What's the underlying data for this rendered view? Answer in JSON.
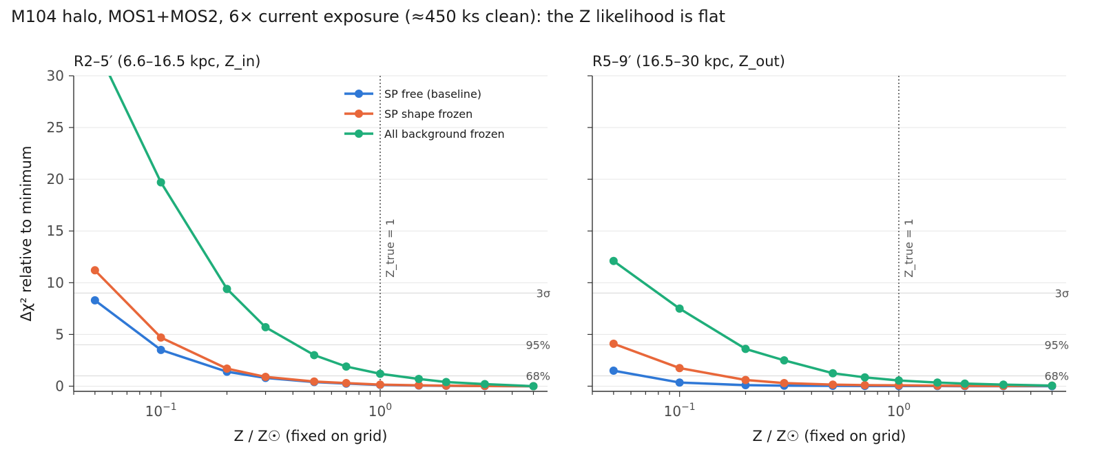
{
  "figure": {
    "title": "M104 halo, MOS1+MOS2, 6× current exposure (≈450 ks clean): the Z likelihood is flat"
  },
  "reference_lines": [
    {
      "label": "3σ",
      "value": 9.0
    },
    {
      "label": "95%",
      "value": 4.0
    },
    {
      "label": "68%",
      "value": 1.0
    }
  ],
  "legend": {
    "placement": "upper-right (left panel)",
    "entries": [
      "SP free (baseline)",
      "SP shape frozen",
      "All background frozen"
    ]
  },
  "colors": {
    "sp_free": "#2f78d6",
    "sp_shape_frozen": "#e8673a",
    "all_bkg_frozen": "#1fae7a",
    "ref_line": "#dddddd",
    "grid": "#e6e6e6",
    "axis": "#333333",
    "ztrue_line": "#555555"
  },
  "chart_data": [
    {
      "type": "line",
      "title": "R2–5′  (6.6–16.5 kpc, Z_in)",
      "xlabel": "Z / Z☉ (fixed on grid)",
      "ylabel": "Δχ² relative to minimum",
      "xscale": "log",
      "xlim": [
        0.04,
        5.8
      ],
      "ylim": [
        -0.5,
        30
      ],
      "xticks": [
        {
          "value": 0.1,
          "base": "10",
          "exp": "−1"
        },
        {
          "value": 1.0,
          "base": "10",
          "exp": "0"
        }
      ],
      "yticks": [
        0,
        5,
        10,
        15,
        20,
        25,
        30
      ],
      "grid": "horizontal",
      "vline": {
        "x": 1.0,
        "label": "Z_true = 1"
      },
      "x": [
        0.05,
        0.1,
        0.2,
        0.3,
        0.5,
        0.7,
        1.0,
        1.5,
        2.0,
        3.0,
        5.0
      ],
      "series": [
        {
          "name": "SP free (baseline)",
          "color_key": "sp_free",
          "values": [
            8.3,
            3.5,
            1.4,
            0.8,
            0.4,
            0.25,
            0.12,
            0.06,
            0.03,
            0.01,
            0.0
          ]
        },
        {
          "name": "SP shape frozen",
          "color_key": "sp_shape_frozen",
          "values": [
            11.2,
            4.7,
            1.7,
            0.9,
            0.45,
            0.3,
            0.15,
            0.08,
            0.05,
            0.02,
            0.0
          ]
        },
        {
          "name": "All background frozen",
          "color_key": "all_bkg_frozen",
          "values": [
            33.0,
            19.7,
            9.4,
            5.7,
            3.0,
            1.9,
            1.2,
            0.7,
            0.4,
            0.2,
            0.0
          ]
        }
      ]
    },
    {
      "type": "line",
      "title": "R5–9′  (16.5–30 kpc, Z_out)",
      "xlabel": "Z / Z☉ (fixed on grid)",
      "ylabel": "",
      "xscale": "log",
      "xlim": [
        0.04,
        5.8
      ],
      "ylim": [
        -0.5,
        30
      ],
      "xticks": [
        {
          "value": 0.1,
          "base": "10",
          "exp": "−1"
        },
        {
          "value": 1.0,
          "base": "10",
          "exp": "0"
        }
      ],
      "yticks": [
        0,
        5,
        10,
        15,
        20,
        25,
        30
      ],
      "grid": "horizontal",
      "vline": {
        "x": 1.0,
        "label": "Z_true = 1"
      },
      "x": [
        0.05,
        0.1,
        0.2,
        0.3,
        0.5,
        0.7,
        1.0,
        1.5,
        2.0,
        3.0,
        5.0
      ],
      "series": [
        {
          "name": "SP free (baseline)",
          "color_key": "sp_free",
          "values": [
            1.5,
            0.35,
            0.1,
            0.05,
            0.03,
            0.02,
            0.01,
            0.01,
            0.0,
            0.0,
            0.0
          ]
        },
        {
          "name": "SP shape frozen",
          "color_key": "sp_shape_frozen",
          "values": [
            4.1,
            1.75,
            0.6,
            0.3,
            0.15,
            0.1,
            0.08,
            0.05,
            0.03,
            0.02,
            0.05
          ]
        },
        {
          "name": "All background frozen",
          "color_key": "all_bkg_frozen",
          "values": [
            12.1,
            7.5,
            3.6,
            2.5,
            1.25,
            0.85,
            0.55,
            0.35,
            0.25,
            0.15,
            0.05
          ]
        }
      ]
    }
  ]
}
